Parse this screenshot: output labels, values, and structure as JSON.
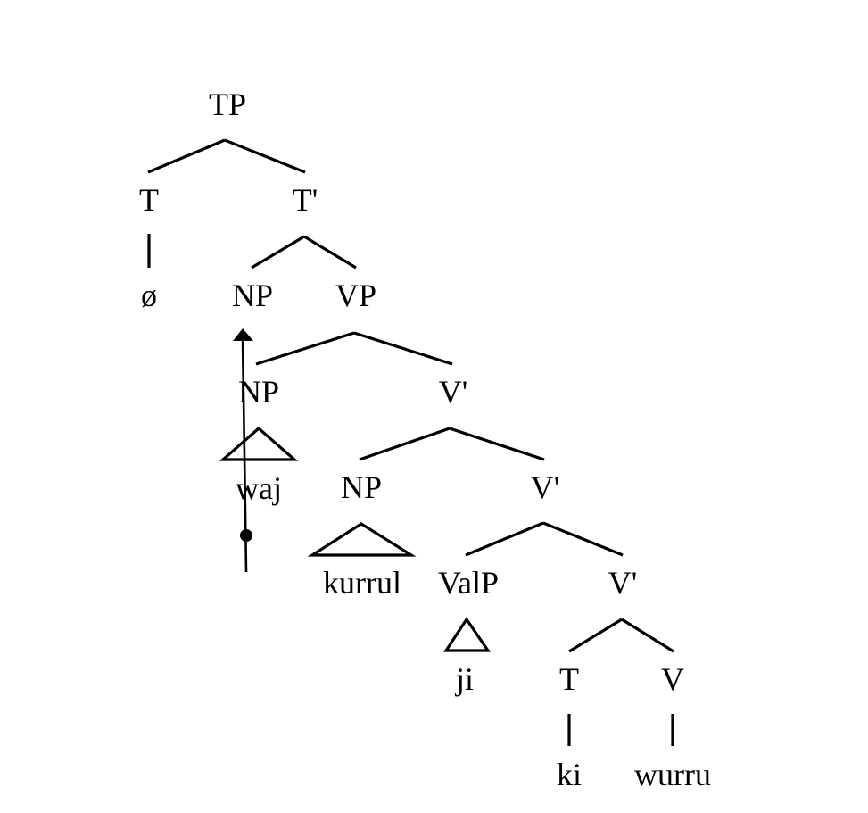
{
  "tree": {
    "root": "TP",
    "labels": {
      "tp": "TP",
      "t": "T",
      "t_bar": "T'",
      "null_t": "ø",
      "np_spec_t": "NP",
      "vp": "VP",
      "np_spec_v": "NP",
      "v_bar_1": "V'",
      "waj": "waj",
      "np_obj": "NP",
      "v_bar_2": "V'",
      "kurrul": "kurrul",
      "valp": "ValP",
      "v_bar_3": "V'",
      "ji": "ji",
      "t_low": "T",
      "v": "V",
      "ki": "ki",
      "wurru": "wurru"
    }
  }
}
